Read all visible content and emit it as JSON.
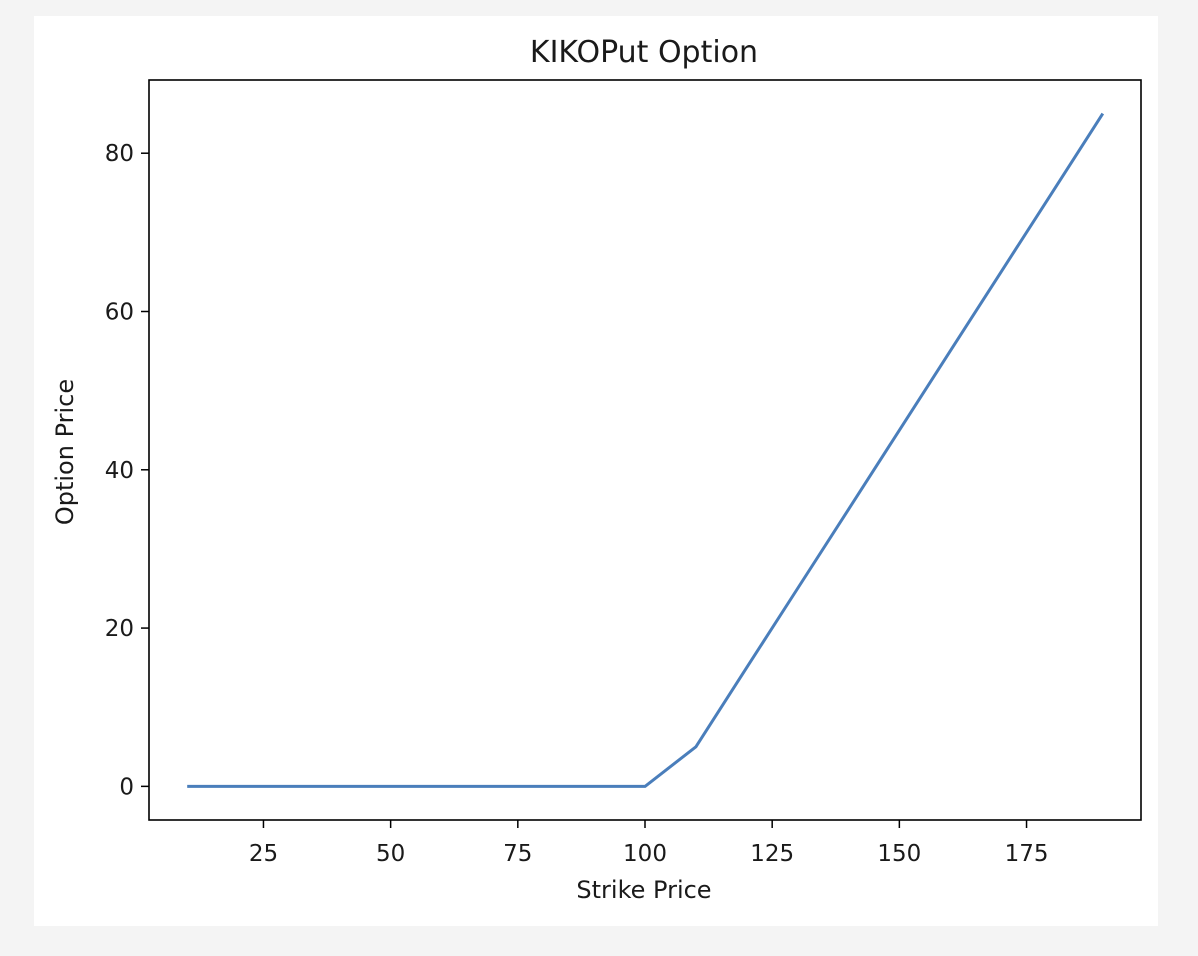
{
  "chart_data": {
    "type": "line",
    "title": "KIKOPut Option",
    "xlabel": "Strike Price",
    "ylabel": "Option Price",
    "xlim": [
      2.5,
      197.5
    ],
    "ylim": [
      -4.25,
      89.25
    ],
    "xticks": [
      25,
      50,
      75,
      100,
      125,
      150,
      175
    ],
    "yticks": [
      0,
      20,
      40,
      60,
      80
    ],
    "grid": false,
    "series": [
      {
        "color": "#4a7ebb",
        "x": [
          10,
          20,
          30,
          40,
          50,
          60,
          70,
          80,
          90,
          100,
          110,
          120,
          130,
          140,
          150,
          160,
          170,
          180,
          190
        ],
        "y": [
          0,
          0,
          0,
          0,
          0,
          0,
          0,
          0,
          0,
          0,
          5,
          15,
          25,
          35,
          45,
          55,
          65,
          75,
          85
        ]
      }
    ]
  }
}
